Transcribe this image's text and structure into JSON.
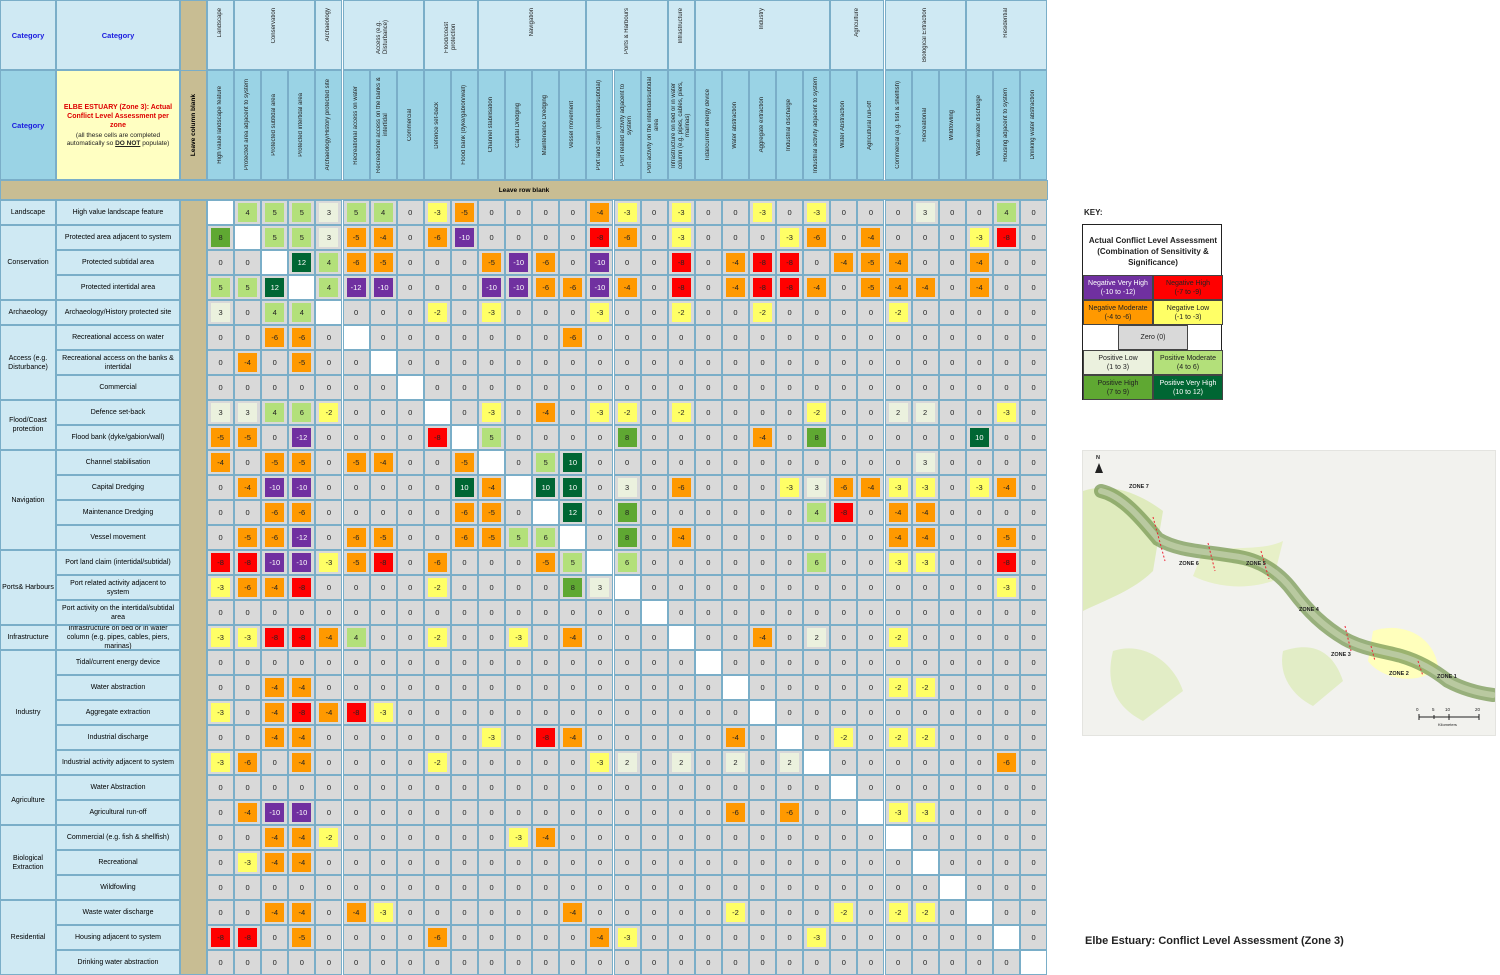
{
  "corner_label": "Category",
  "side_category_label": "Category",
  "instructions": {
    "title": "ELBE ESTUARY (Zone 3):  Actual Conflict Level Assessment per zone",
    "note_before": "(all these cells are completed automatically so ",
    "note_emph": "DO NOT",
    "note_after": " populate)"
  },
  "leave_column_blank": "Leave column blank",
  "leave_row_blank": "Leave row blank",
  "col_categories": [
    "Landscape",
    "Conservation",
    "Archaeology",
    "Access (e.g. Disturbance)",
    "Flood/coast protection",
    "Navigation",
    "Ports & Harbours",
    "Infrastructure",
    "Industry",
    "Agriculture",
    "Biological Extraction",
    "Residential"
  ],
  "row_categories": [
    "Landscape",
    "Conservation",
    "Archaeology",
    "Access (e.g. Disturbance)",
    "Flood/Coast protection",
    "Navigation",
    "Ports& Harbours",
    "Infrastructure",
    "Industry",
    "Agriculture",
    "Biological Extraction",
    "Residential"
  ],
  "category_sizes": [
    1,
    3,
    1,
    3,
    2,
    4,
    3,
    1,
    5,
    2,
    3,
    3
  ],
  "col_labels": [
    "High value landscape feature",
    "Protected area adjacent to system",
    "Protected subtidal area",
    "Protected intertidal area",
    "Archaeology/History protected site",
    "Recreational access on water",
    "Recreational access on the banks & intertidal",
    "Commercial",
    "Defence set-back",
    "Flood bank (dyke/gabion/wall)",
    "Channel stabilisation",
    "Capital Dredging",
    "Maintenance Dredging",
    "Vessel movement",
    "Port land claim (intertidal/subtidal)",
    "Port related activity adjacent to system",
    "Port activity on the intertidal/subtidal area",
    "Infrastructure on bed or in water column (e.g. pipes, cables, piers, marinas)",
    "Tidal/current energy device",
    "Water abstraction",
    "Aggregate extraction",
    "Industrial discharge",
    "Industrial activity adjacent to system",
    "Water Abstraction",
    "Agricultural run-off",
    "Commercial (e.g. fish & shellfish)",
    "Recreational",
    "Wildfowling",
    "Waste water discharge",
    "Housing adjacent to system",
    "Drinking water abstraction"
  ],
  "row_labels": [
    "High value landscape feature",
    "Protected area adjacent to system",
    "Protected subtidal area",
    "Protected intertidal area",
    "Archaeology/History protected site",
    "Recreational access on water",
    "Recreational access on the banks & intertidal",
    "Commercial",
    "Defence set-back",
    "Flood bank (dyke/gabion/wall)",
    "Channel stabilisation",
    "Capital Dredging",
    "Maintenance Dredging",
    "Vessel movement",
    "Port land claim (intertidal/subtidal)",
    "Port related activity adjacent to system",
    "Port activity on the intertidal/subtidal area",
    "Infrastructure on bed or in water column (e.g. pipes, cables, piers, marinas)",
    "Tidal/current energy device",
    "Water abstraction",
    "Aggregate extraction",
    "Industrial discharge",
    "Industrial activity adjacent to system",
    "Water Abstraction",
    "Agricultural run-off",
    "Commercial (e.g. fish & shellfish)",
    "Recreational",
    "Wildfowling",
    "Waste water discharge",
    "Housing adjacent to system",
    "Drinking water abstraction"
  ],
  "matrix": [
    [
      null,
      4,
      5,
      5,
      3,
      5,
      4,
      0,
      -3,
      -5,
      0,
      0,
      0,
      0,
      -4,
      -3,
      0,
      -3,
      0,
      0,
      -3,
      0,
      -3,
      0,
      0,
      0,
      3,
      0,
      0,
      4,
      0
    ],
    [
      8,
      null,
      5,
      5,
      3,
      -5,
      -4,
      0,
      -6,
      -10,
      0,
      0,
      0,
      0,
      -8,
      -6,
      0,
      -3,
      0,
      0,
      0,
      -3,
      -6,
      0,
      -4,
      0,
      0,
      0,
      -3,
      -8,
      0
    ],
    [
      0,
      0,
      null,
      12,
      4,
      -6,
      -5,
      0,
      0,
      0,
      -5,
      -10,
      -6,
      0,
      -10,
      0,
      0,
      -8,
      0,
      -4,
      -8,
      -8,
      0,
      -4,
      -5,
      -4,
      0,
      0,
      -4,
      0,
      0
    ],
    [
      5,
      5,
      12,
      null,
      4,
      -12,
      -10,
      0,
      0,
      0,
      -10,
      -10,
      -6,
      -6,
      -10,
      -4,
      0,
      -8,
      0,
      -4,
      -8,
      -8,
      -4,
      0,
      -5,
      -4,
      -4,
      0,
      -4,
      0,
      0
    ],
    [
      3,
      0,
      4,
      4,
      null,
      0,
      0,
      0,
      -2,
      0,
      -3,
      0,
      0,
      0,
      -3,
      0,
      0,
      -2,
      0,
      0,
      -2,
      0,
      0,
      0,
      0,
      -2,
      0,
      0,
      0,
      0,
      0
    ],
    [
      0,
      0,
      -6,
      -6,
      0,
      null,
      0,
      0,
      0,
      0,
      0,
      0,
      0,
      -6,
      0,
      0,
      0,
      0,
      0,
      0,
      0,
      0,
      0,
      0,
      0,
      0,
      0,
      0,
      0,
      0,
      0
    ],
    [
      0,
      -4,
      0,
      -5,
      0,
      0,
      null,
      0,
      0,
      0,
      0,
      0,
      0,
      0,
      0,
      0,
      0,
      0,
      0,
      0,
      0,
      0,
      0,
      0,
      0,
      0,
      0,
      0,
      0,
      0,
      0
    ],
    [
      0,
      0,
      0,
      0,
      0,
      0,
      0,
      null,
      0,
      0,
      0,
      0,
      0,
      0,
      0,
      0,
      0,
      0,
      0,
      0,
      0,
      0,
      0,
      0,
      0,
      0,
      0,
      0,
      0,
      0,
      0
    ],
    [
      3,
      3,
      4,
      6,
      -2,
      0,
      0,
      0,
      null,
      0,
      -3,
      0,
      -4,
      0,
      -3,
      -2,
      0,
      -2,
      0,
      0,
      0,
      0,
      -2,
      0,
      0,
      2,
      2,
      0,
      0,
      -3,
      0
    ],
    [
      -5,
      -5,
      0,
      -12,
      0,
      0,
      0,
      0,
      -8,
      null,
      5,
      0,
      0,
      0,
      0,
      8,
      0,
      0,
      0,
      0,
      -4,
      0,
      8,
      0,
      0,
      0,
      0,
      0,
      10,
      0,
      0
    ],
    [
      -4,
      0,
      -5,
      -5,
      0,
      -5,
      -4,
      0,
      0,
      -5,
      null,
      0,
      5,
      10,
      0,
      0,
      0,
      0,
      0,
      0,
      0,
      0,
      0,
      0,
      0,
      0,
      3,
      0,
      0,
      0,
      0
    ],
    [
      0,
      -4,
      -10,
      -10,
      0,
      0,
      0,
      0,
      0,
      10,
      -4,
      null,
      10,
      10,
      0,
      3,
      0,
      -6,
      0,
      0,
      0,
      -3,
      3,
      -6,
      -4,
      -3,
      -3,
      0,
      -3,
      -4,
      0
    ],
    [
      0,
      0,
      -6,
      -6,
      0,
      0,
      0,
      0,
      0,
      -6,
      -5,
      0,
      null,
      12,
      0,
      8,
      0,
      0,
      0,
      0,
      0,
      0,
      4,
      -8,
      0,
      -4,
      -4,
      0,
      0,
      0,
      0
    ],
    [
      0,
      -5,
      -6,
      -12,
      0,
      -6,
      -5,
      0,
      0,
      -6,
      -5,
      5,
      6,
      null,
      0,
      8,
      0,
      -4,
      0,
      0,
      0,
      0,
      0,
      0,
      0,
      -4,
      -4,
      0,
      0,
      -5,
      0
    ],
    [
      -8,
      -8,
      -10,
      -10,
      -3,
      -5,
      -8,
      0,
      -6,
      0,
      0,
      0,
      -5,
      5,
      null,
      6,
      0,
      0,
      0,
      0,
      0,
      0,
      6,
      0,
      0,
      -3,
      -3,
      0,
      0,
      -8,
      0
    ],
    [
      -3,
      -6,
      -4,
      -8,
      0,
      0,
      0,
      0,
      -2,
      0,
      0,
      0,
      0,
      8,
      3,
      null,
      0,
      0,
      0,
      0,
      0,
      0,
      0,
      0,
      0,
      0,
      0,
      0,
      0,
      -3,
      0
    ],
    [
      0,
      0,
      0,
      0,
      0,
      0,
      0,
      0,
      0,
      0,
      0,
      0,
      0,
      0,
      0,
      0,
      null,
      0,
      0,
      0,
      0,
      0,
      0,
      0,
      0,
      0,
      0,
      0,
      0,
      0,
      0
    ],
    [
      -3,
      -3,
      -8,
      -8,
      -4,
      4,
      0,
      0,
      -2,
      0,
      0,
      -3,
      0,
      -4,
      0,
      0,
      0,
      null,
      0,
      0,
      -4,
      0,
      2,
      0,
      0,
      -2,
      0,
      0,
      0,
      0,
      0
    ],
    [
      0,
      0,
      0,
      0,
      0,
      0,
      0,
      0,
      0,
      0,
      0,
      0,
      0,
      0,
      0,
      0,
      0,
      0,
      null,
      0,
      0,
      0,
      0,
      0,
      0,
      0,
      0,
      0,
      0,
      0,
      0
    ],
    [
      0,
      0,
      -4,
      -4,
      0,
      0,
      0,
      0,
      0,
      0,
      0,
      0,
      0,
      0,
      0,
      0,
      0,
      0,
      0,
      null,
      0,
      0,
      0,
      0,
      0,
      -2,
      -2,
      0,
      0,
      0,
      0
    ],
    [
      -3,
      0,
      -4,
      -8,
      -4,
      -8,
      -3,
      0,
      0,
      0,
      0,
      0,
      0,
      0,
      0,
      0,
      0,
      0,
      0,
      0,
      null,
      0,
      0,
      0,
      0,
      0,
      0,
      0,
      0,
      0,
      0
    ],
    [
      0,
      0,
      -4,
      -4,
      0,
      0,
      0,
      0,
      0,
      0,
      -3,
      0,
      -8,
      -4,
      0,
      0,
      0,
      0,
      0,
      -4,
      0,
      null,
      0,
      -2,
      0,
      -2,
      -2,
      0,
      0,
      0,
      0
    ],
    [
      -3,
      -6,
      0,
      -4,
      0,
      0,
      0,
      0,
      -2,
      0,
      0,
      0,
      0,
      0,
      -3,
      2,
      0,
      2,
      0,
      2,
      0,
      2,
      null,
      0,
      0,
      0,
      0,
      0,
      0,
      -6,
      0
    ],
    [
      0,
      0,
      0,
      0,
      0,
      0,
      0,
      0,
      0,
      0,
      0,
      0,
      0,
      0,
      0,
      0,
      0,
      0,
      0,
      0,
      0,
      0,
      0,
      null,
      0,
      0,
      0,
      0,
      0,
      0,
      0
    ],
    [
      0,
      -4,
      -10,
      -10,
      0,
      0,
      0,
      0,
      0,
      0,
      0,
      0,
      0,
      0,
      0,
      0,
      0,
      0,
      0,
      -6,
      0,
      -6,
      0,
      0,
      null,
      -3,
      -3,
      0,
      0,
      0,
      0
    ],
    [
      0,
      0,
      -4,
      -4,
      -2,
      0,
      0,
      0,
      0,
      0,
      0,
      -3,
      -4,
      0,
      0,
      0,
      0,
      0,
      0,
      0,
      0,
      0,
      0,
      0,
      0,
      null,
      0,
      0,
      0,
      0,
      0
    ],
    [
      0,
      -3,
      -4,
      -4,
      0,
      0,
      0,
      0,
      0,
      0,
      0,
      0,
      0,
      0,
      0,
      0,
      0,
      0,
      0,
      0,
      0,
      0,
      0,
      0,
      0,
      0,
      null,
      0,
      0,
      0,
      0
    ],
    [
      0,
      0,
      0,
      0,
      0,
      0,
      0,
      0,
      0,
      0,
      0,
      0,
      0,
      0,
      0,
      0,
      0,
      0,
      0,
      0,
      0,
      0,
      0,
      0,
      0,
      0,
      0,
      null,
      0,
      0,
      0
    ],
    [
      0,
      0,
      -4,
      -4,
      0,
      -4,
      -3,
      0,
      0,
      0,
      0,
      0,
      0,
      -4,
      0,
      0,
      0,
      0,
      0,
      -2,
      0,
      0,
      0,
      -2,
      0,
      -2,
      -2,
      0,
      null,
      0,
      0
    ],
    [
      -8,
      -8,
      0,
      -5,
      0,
      0,
      0,
      0,
      -6,
      0,
      0,
      0,
      0,
      0,
      -4,
      -3,
      0,
      0,
      0,
      0,
      0,
      0,
      -3,
      0,
      0,
      0,
      0,
      0,
      0,
      null,
      0
    ],
    [
      0,
      0,
      0,
      0,
      0,
      0,
      0,
      0,
      0,
      0,
      0,
      0,
      0,
      0,
      0,
      0,
      0,
      0,
      0,
      0,
      0,
      0,
      0,
      0,
      0,
      0,
      0,
      0,
      0,
      0,
      null
    ]
  ],
  "level_colors": {
    "neg_very_high": "#7030a0",
    "neg_high": "#ff0000",
    "neg_moderate": "#ff9900",
    "neg_low": "#ffff66",
    "zero": "#d9d9d9",
    "pos_low": "#ebf1de",
    "pos_moderate": "#b3e07a",
    "pos_high": "#5fa832",
    "pos_very_high": "#006633",
    "diagonal": "#ffffff"
  },
  "key": {
    "label": "KEY:",
    "title": "Actual Conflict Level Assessment (Combination of Sensitivity & Significance)",
    "neg_very_high": [
      "Negative Very High",
      "(-10 to -12)"
    ],
    "neg_high": [
      "Negative High",
      "(-7 to -9)"
    ],
    "neg_moderate": [
      "Negative Moderate",
      "(-4 to -6)"
    ],
    "neg_low": [
      "Negative Low",
      "(-1 to -3)"
    ],
    "zero": [
      "Zero (0)"
    ],
    "pos_low": [
      "Positive Low",
      "(1 to 3)"
    ],
    "pos_moderate": [
      "Positive Moderate",
      "(4 to 6)"
    ],
    "pos_high": [
      "Positive High",
      "(7 to 9)"
    ],
    "pos_very_high": [
      "Positive Very High",
      "(10 to 12)"
    ]
  },
  "map": {
    "north": "N",
    "zone_labels": [
      "ZONE 7",
      "ZONE 6",
      "ZONE 5",
      "ZONE 4",
      "ZONE 3",
      "ZONE 2",
      "ZONE 1"
    ],
    "scale_ticks": [
      "0",
      "5",
      "10",
      "20"
    ],
    "scale_unit": "Kilometers"
  },
  "footer_title": "Elbe Estuary:  Conflict Level Assessment (Zone 3)"
}
